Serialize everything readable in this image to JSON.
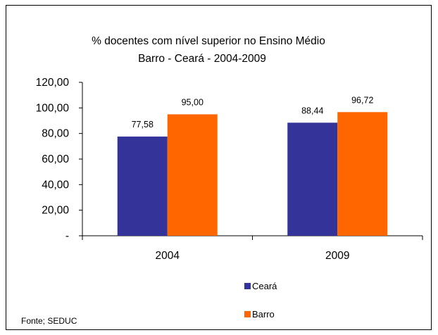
{
  "chart_data": {
    "type": "bar",
    "title": "% docentes com nível  superior no Ensino Médio",
    "subtitle": "Barro  -  Ceará - 2004-2009",
    "categories": [
      "2004",
      "2009"
    ],
    "series": [
      {
        "name": "Ceará",
        "values": [
          77.58,
          88.44
        ],
        "labels": [
          "77,58",
          "88,44"
        ],
        "color": "#333399"
      },
      {
        "name": "Barro",
        "values": [
          95.0,
          96.72
        ],
        "labels": [
          "95,00",
          "96,72"
        ],
        "color": "#FF6600"
      }
    ],
    "ylim": [
      0,
      120
    ],
    "yticks": [
      0,
      20,
      40,
      60,
      80,
      100,
      120
    ],
    "ytick_labels": [
      "-",
      "20,00",
      "40,00",
      "60,00",
      "80,00",
      "100,00",
      "120,00"
    ],
    "grid": false,
    "legend_position": "bottom"
  },
  "source_note": "Fonte; SEDUC"
}
